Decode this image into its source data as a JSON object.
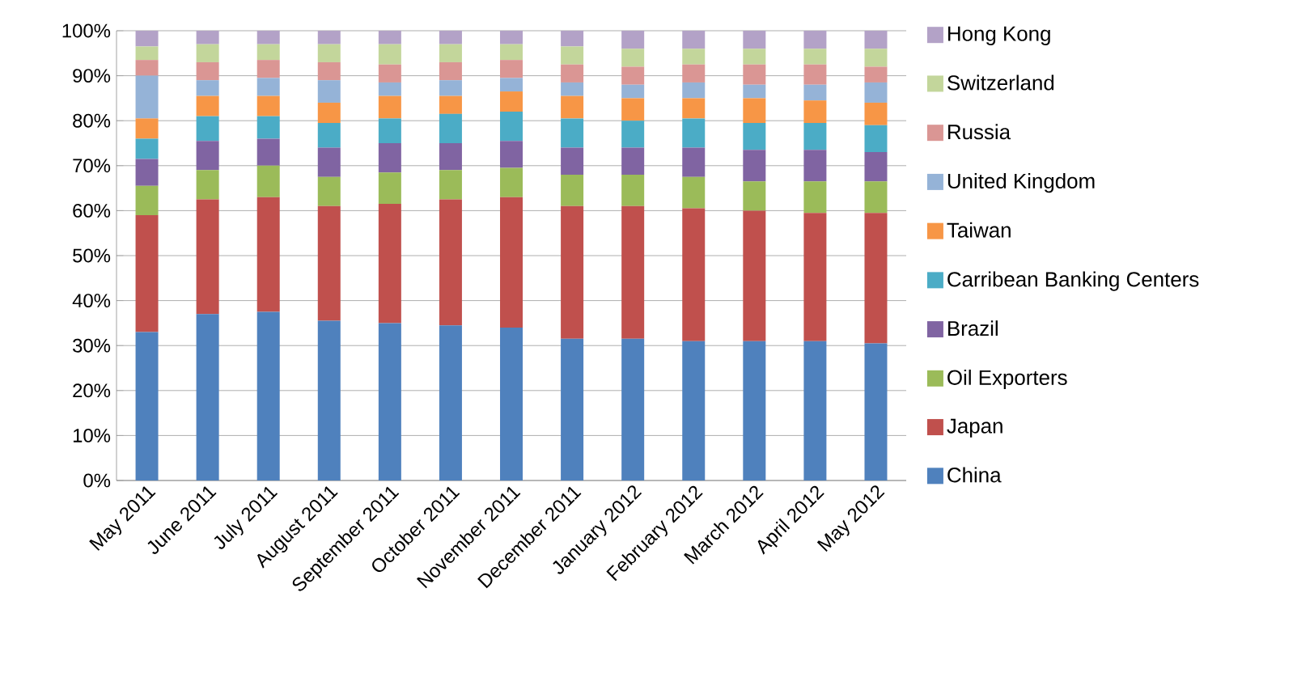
{
  "chart_data": {
    "type": "bar",
    "stacked": true,
    "grid": "y",
    "legend": "right",
    "categories": [
      "May 2011",
      "June 2011",
      "July 2011",
      "August 2011",
      "September 2011",
      "October 2011",
      "November 2011",
      "December 2011",
      "January 2012",
      "February 2012",
      "March 2012",
      "April 2012",
      "May 2012"
    ],
    "ylim": [
      0,
      100
    ],
    "yticks": [
      {
        "value": 0,
        "label": "0%"
      },
      {
        "value": 10,
        "label": "10%"
      },
      {
        "value": 20,
        "label": "20%"
      },
      {
        "value": 30,
        "label": "30%"
      },
      {
        "value": 40,
        "label": "40%"
      },
      {
        "value": 50,
        "label": "50%"
      },
      {
        "value": 60,
        "label": "60%"
      },
      {
        "value": 70,
        "label": "70%"
      },
      {
        "value": 80,
        "label": "80%"
      },
      {
        "value": 90,
        "label": "90%"
      },
      {
        "value": 100,
        "label": "100%"
      }
    ],
    "series": [
      {
        "name": "China",
        "color": "#4f81bd",
        "values": [
          33,
          37,
          37.5,
          35.5,
          35,
          34.5,
          34,
          31.5,
          31.5,
          31,
          31,
          31,
          30.5
        ]
      },
      {
        "name": "Japan",
        "color": "#c0504d",
        "values": [
          26,
          25.5,
          25.5,
          25.5,
          26.5,
          28,
          29,
          29.5,
          29.5,
          29.5,
          29,
          28.5,
          29
        ]
      },
      {
        "name": "Oil Exporters",
        "color": "#9bbb59",
        "values": [
          6.5,
          6.5,
          7,
          6.5,
          7,
          6.5,
          6.5,
          7,
          7,
          7,
          6.5,
          7,
          7
        ]
      },
      {
        "name": "Brazil",
        "color": "#8064a2",
        "values": [
          6,
          6.5,
          6,
          6.5,
          6.5,
          6,
          6,
          6,
          6,
          6.5,
          7,
          7,
          6.5
        ]
      },
      {
        "name": "Carribean Banking Centers",
        "color": "#4bacc6",
        "values": [
          4.5,
          5.5,
          5,
          5.5,
          5.5,
          6.5,
          6.5,
          6.5,
          6,
          6.5,
          6,
          6,
          6
        ]
      },
      {
        "name": "Taiwan",
        "color": "#f79646",
        "values": [
          4.5,
          4.5,
          4.5,
          4.5,
          5,
          4,
          4.5,
          5,
          5,
          4.5,
          5.5,
          5,
          5
        ]
      },
      {
        "name": "United Kingdom",
        "color": "#95b3d7",
        "values": [
          9.5,
          3.5,
          4,
          5,
          3,
          3.5,
          3,
          3,
          3,
          3.5,
          3,
          3.5,
          4.5
        ]
      },
      {
        "name": "Russia",
        "color": "#da9694",
        "values": [
          3.5,
          4,
          4,
          4,
          4,
          4,
          4,
          4,
          4,
          4,
          4.5,
          4.5,
          3.5
        ]
      },
      {
        "name": "Switzerland",
        "color": "#c3d69b",
        "values": [
          3,
          4,
          3.5,
          4,
          4.5,
          4,
          3.5,
          4,
          4,
          3.5,
          3.5,
          3.5,
          4
        ]
      },
      {
        "name": "Hong Kong",
        "color": "#b3a2c7",
        "values": [
          3.5,
          3,
          3,
          3,
          3,
          3,
          3,
          3.5,
          4,
          4,
          4,
          4,
          4
        ]
      }
    ]
  }
}
